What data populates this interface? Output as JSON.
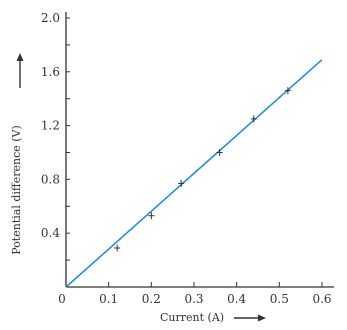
{
  "chart_data": {
    "type": "line",
    "title": "",
    "xlabel": "Current (A)",
    "ylabel": "Potential difference (V)",
    "xlim": [
      0,
      0.6
    ],
    "ylim": [
      0,
      2.0
    ],
    "xticks": [
      "0",
      "0.1",
      "0.2",
      "0.3",
      "0.4",
      "0.5",
      "0.6"
    ],
    "yticks": [
      "0.4",
      "0.8",
      "1.2",
      "1.6",
      "2.0"
    ],
    "origin_label": "0",
    "grid": false,
    "fit_line": {
      "x": [
        0,
        0.6
      ],
      "y": [
        0,
        1.69
      ]
    },
    "points": [
      {
        "x": 0.12,
        "y": 0.29
      },
      {
        "x": 0.2,
        "y": 0.53
      },
      {
        "x": 0.27,
        "y": 0.77
      },
      {
        "x": 0.36,
        "y": 1.0
      },
      {
        "x": 0.44,
        "y": 1.25
      },
      {
        "x": 0.52,
        "y": 1.46
      }
    ],
    "colors": {
      "line": "#2a8fc4",
      "axis": "#333333",
      "marker": "#333333"
    }
  }
}
